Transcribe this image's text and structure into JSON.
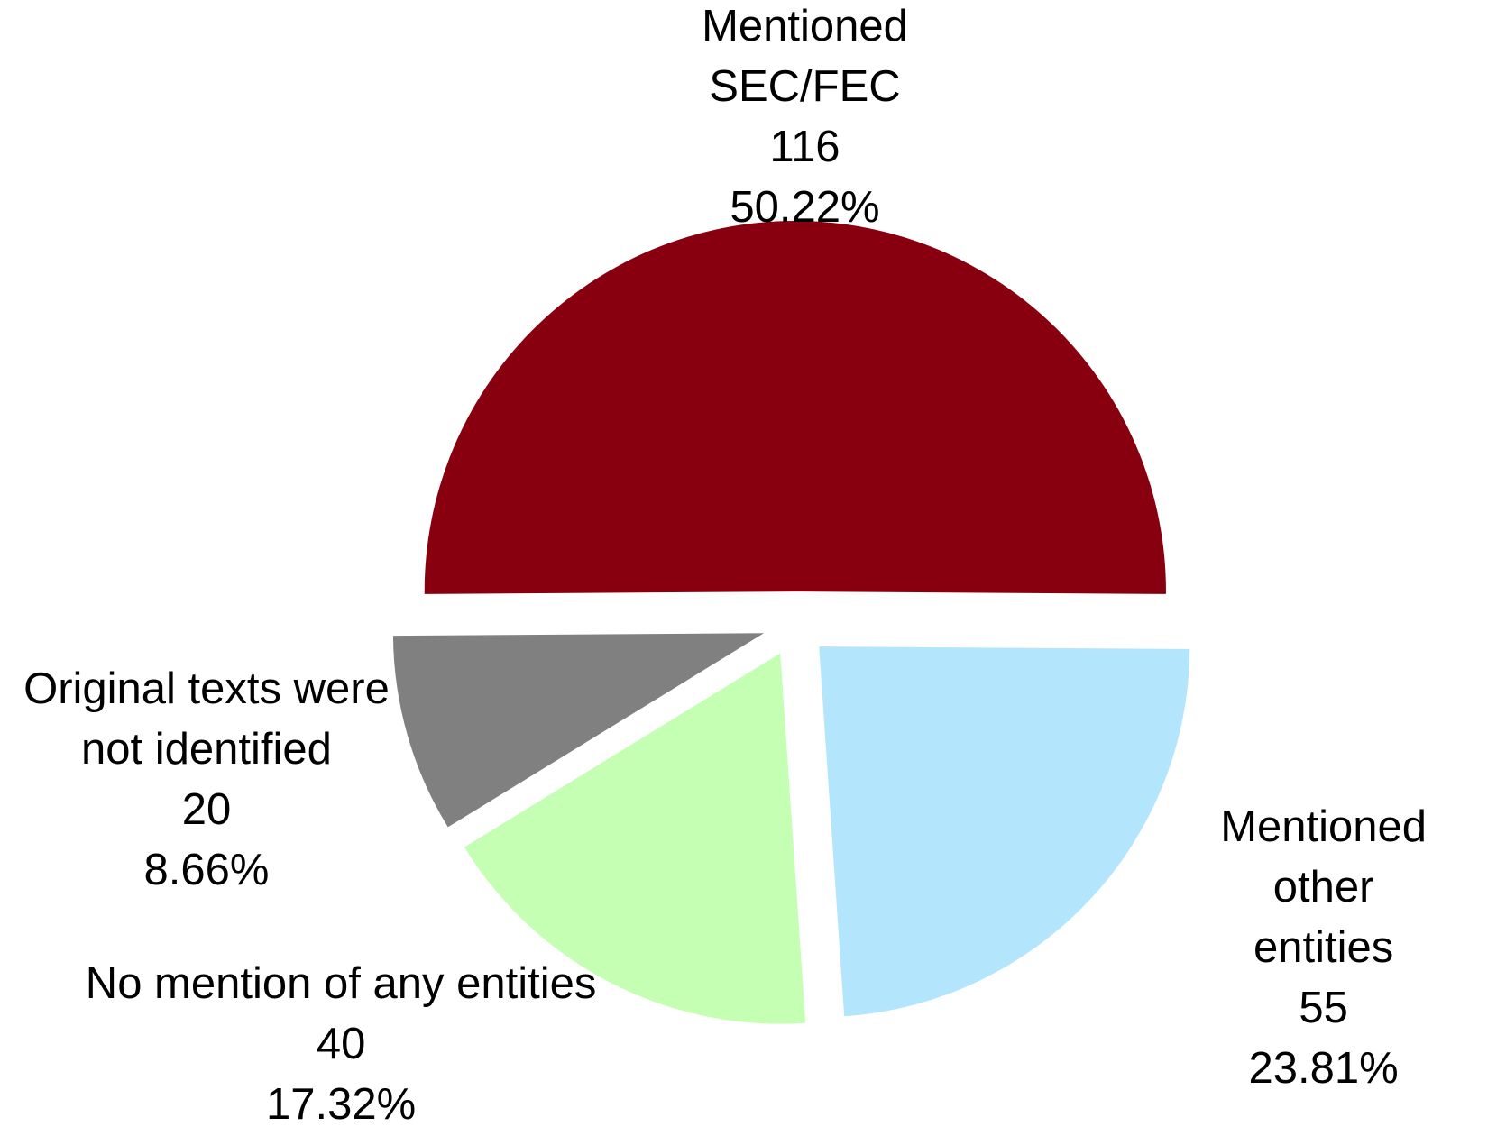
{
  "chart_data": {
    "type": "pie",
    "categories": [
      "Mentioned\nSEC/FEC",
      "Mentioned other\nentities",
      "No mention of any entities",
      "Original texts were\nnot identified"
    ],
    "values": [
      116,
      55,
      40,
      20
    ],
    "percentages": [
      50.22,
      23.81,
      17.32,
      8.66
    ],
    "percentage_labels": [
      "50.22%",
      "23.81%",
      "17.32%",
      "8.66%"
    ],
    "colors": [
      "#88000f",
      "#b3e5fc",
      "#c4ffb4",
      "#808080"
    ]
  }
}
